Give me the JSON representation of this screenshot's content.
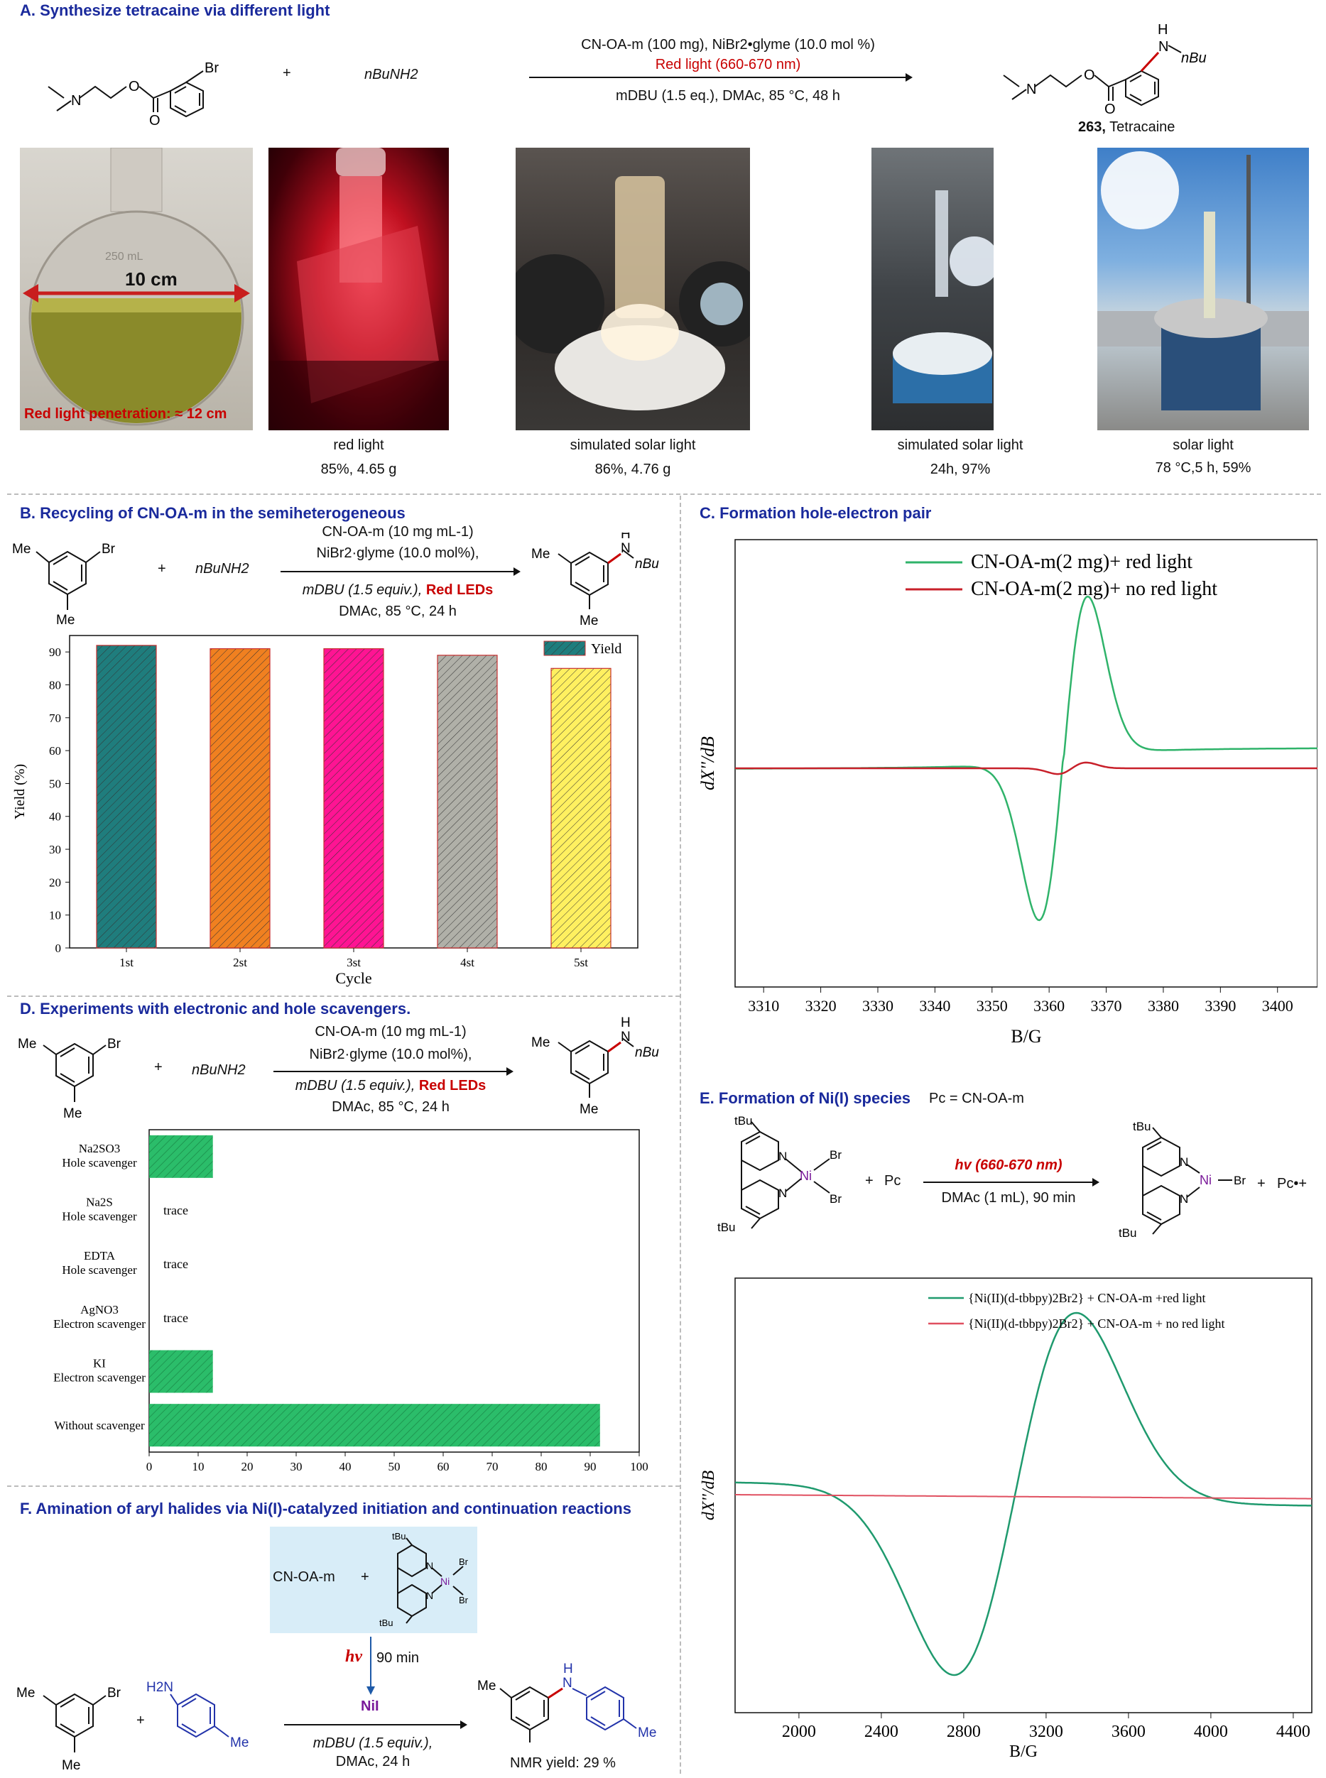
{
  "panelA": {
    "header": "A. Synthesize tetracaine via different light",
    "plus": "+",
    "amine": "nBuNH2",
    "cond_top": "CN-OA-m (100 mg), NiBr2•glyme (10.0 mol %)",
    "cond_red": "Red light (660-670 nm)",
    "cond_bottom": "mDBU (1.5 eq.), DMAc, 85 °C, 48 h",
    "product_number": "263,",
    "product_name": "Tetracaine",
    "atom_br": "Br",
    "atom_n": "N",
    "atom_o": "O",
    "atom_h": "H",
    "atom_nbu": "nBu",
    "photo1_label_distance": "10 cm",
    "photo1_label_penetration": "Red light penetration: ≈ 12 cm",
    "photo1_flask_text": "250 mL",
    "photos": [
      {
        "caption": "red light",
        "result": "85%, 4.65 g"
      },
      {
        "caption": "simulated solar light",
        "result": "86%, 4.76 g"
      },
      {
        "caption": "simulated solar light",
        "result": "24h, 97%"
      },
      {
        "caption": "solar light",
        "result": "78 °C,5 h, 59%"
      }
    ]
  },
  "panelB": {
    "header": "B. Recycling of CN-OA-m in the semiheterogeneous",
    "cond1": "CN-OA-m (10 mg mL-1)",
    "cond2": "NiBr2·glyme (10.0 mol%),",
    "cond3": "mDBU (1.5 equiv.),",
    "cond3_red": "Red LEDs",
    "cond4": "DMAc, 85 °C, 24 h",
    "plus": "+",
    "amine": "nBuNH2",
    "me": "Me",
    "br": "Br",
    "nh": "H",
    "n": "N",
    "nbu": "nBu"
  },
  "panelC": {
    "header": "C. Formation hole-electron pair",
    "ylabel": "dX''/dB",
    "xlabel": "B/G"
  },
  "panelD": {
    "header": "D. Experiments with electronic and hole scavengers.",
    "cond1": "CN-OA-m (10 mg mL-1)",
    "cond2": "NiBr2·glyme (10.0 mol%),",
    "cond3": "mDBU (1.5 equiv.),",
    "cond3_red": "Red LEDs",
    "cond4": "DMAc, 85 °C, 24 h",
    "plus": "+",
    "amine": "nBuNH2",
    "me": "Me",
    "br": "Br",
    "nh": "H",
    "n": "N",
    "nbu": "nBu"
  },
  "panelE": {
    "header": "E. Formation of Ni(I) species",
    "pc_def": "Pc = CN-OA-m",
    "cond_top": "hv (660-670 nm)",
    "cond_bottom": "DMAc (1 mL), 90 min",
    "plus": "+",
    "pc": "Pc",
    "pc_cation": "Pc•+",
    "tbu": "tBu",
    "ni": "Ni",
    "br": "Br",
    "n": "N",
    "ylabel": "dX''/dB",
    "xlabel": "B/G"
  },
  "panelF": {
    "header": "F. Amination of aryl halides via Ni(I)-catalyzed initiation and continuation reactions",
    "box_cn": "CN-OA-m",
    "box_plus": "+",
    "hv": "hv",
    "hv_time": "90 min",
    "nii": "NiI",
    "cond1": "mDBU (1.5 equiv.),",
    "cond2": "DMAc, 24 h",
    "yield": "NMR yield: 29 %",
    "plus": "+",
    "me": "Me",
    "br": "Br",
    "h2n": "H2N",
    "nh": "H",
    "n": "N",
    "tbu": "tBu",
    "ni": "Ni"
  },
  "colors": {
    "header": "#1a2a9c",
    "red": "#c80000",
    "green_trace": "#2fb36a",
    "red_trace": "#c8202a",
    "teal_trace": "#1f9a6e",
    "scavenger_bar": "#2bbd6a"
  },
  "chart_data": [
    {
      "type": "bar",
      "categories": [
        "1st",
        "2st",
        "3st",
        "4st",
        "5st"
      ],
      "values": [
        92,
        91,
        91,
        89,
        85
      ],
      "colors": [
        "#1f7d7d",
        "#f08020",
        "#ff1493",
        "#b0b0a8",
        "#fff060"
      ],
      "legend": "Yield",
      "xlabel": "Cycle",
      "ylabel": "Yield (%)",
      "yticks": [
        "0",
        "10",
        "20",
        "30",
        "40",
        "50",
        "60",
        "70",
        "80",
        "90"
      ],
      "ylim": [
        0,
        95
      ]
    },
    {
      "type": "line",
      "xlabel": "B/G",
      "ylabel": "dX''/dB",
      "xticks": [
        "3310",
        "3320",
        "3330",
        "3340",
        "3350",
        "3360",
        "3370",
        "3380",
        "3390",
        "3400"
      ],
      "xlim": [
        3305,
        3407
      ],
      "series": [
        {
          "name": "CN-OA-m(2 mg)+ red light",
          "color": "#2fb36a"
        },
        {
          "name": "CN-OA-m(2 mg)+ no red light",
          "color": "#c8202a"
        }
      ]
    },
    {
      "type": "bar",
      "orientation": "horizontal",
      "categories": [
        {
          "label1": "Na2SO3",
          "label2": "Hole scavenger"
        },
        {
          "label1": "Na2S",
          "label2": "Hole scavenger"
        },
        {
          "label1": "EDTA",
          "label2": "Hole scavenger"
        },
        {
          "label1": "AgNO3",
          "label2": "Electron scavenger"
        },
        {
          "label1": "KI",
          "label2": "Electron scavenger"
        },
        {
          "label1": "Without scavenger",
          "label2": ""
        }
      ],
      "values": [
        13,
        0,
        0,
        0,
        13,
        92
      ],
      "annotations": [
        "",
        "trace",
        "trace",
        "trace",
        "",
        ""
      ],
      "xticks": [
        "0",
        "10",
        "20",
        "30",
        "40",
        "50",
        "60",
        "70",
        "80",
        "90",
        "100"
      ],
      "xlim": [
        0,
        100
      ]
    },
    {
      "type": "line",
      "xlabel": "B/G",
      "ylabel": "dX''/dB",
      "xticks": [
        "2000",
        "2400",
        "2800",
        "3200",
        "3600",
        "4000",
        "4400"
      ],
      "xlim": [
        1690,
        4490
      ],
      "series": [
        {
          "name": "{Ni(II)(d-tbbpy)2Br2} + CN-OA-m +red light",
          "color": "#1f9a6e"
        },
        {
          "name": "{Ni(II)(d-tbbpy)2Br2} + CN-OA-m + no red light",
          "color": "#e05060"
        }
      ]
    }
  ]
}
